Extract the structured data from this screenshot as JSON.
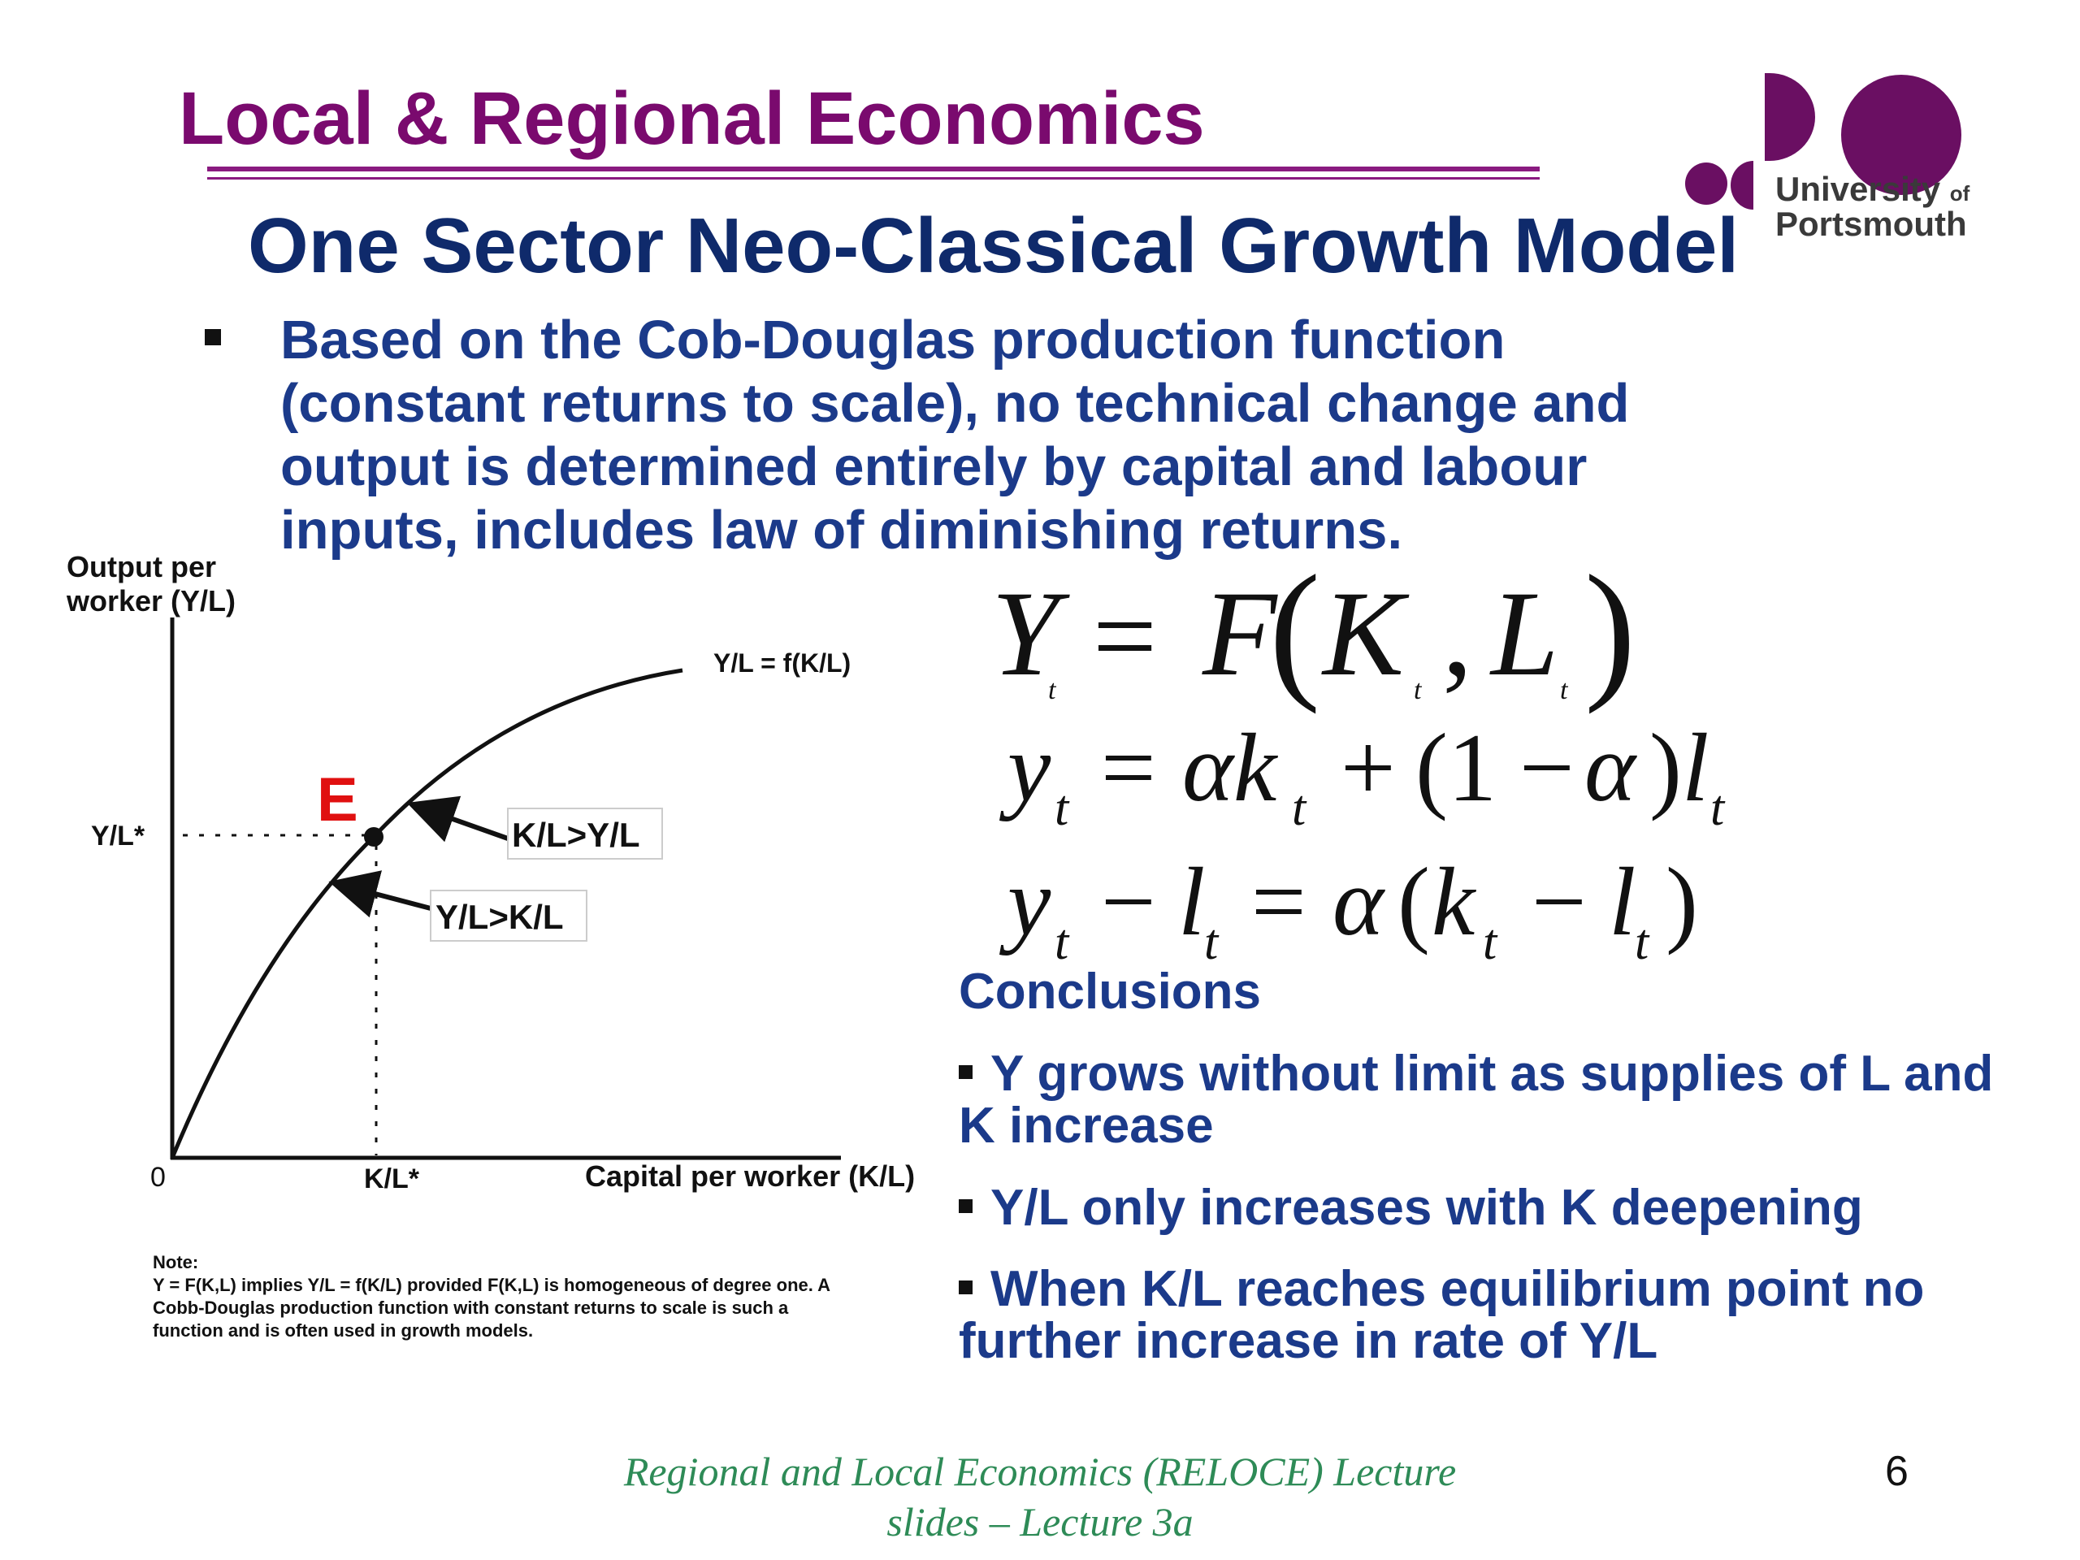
{
  "header": {
    "title": "Local & Regional Economics",
    "logo_line1": "University",
    "logo_of": "of",
    "logo_line2": "Portsmouth",
    "brand_color": "#7a0a6e"
  },
  "slide": {
    "title": "One Sector Neo-Classical Growth Model",
    "intro_lines": [
      "Based on the Cob-Douglas production function",
      "(constant returns to scale), no technical change and",
      "output is determined entirely by capital and labour",
      "inputs, includes law of diminishing returns."
    ]
  },
  "diagram": {
    "y_axis_label_line1": "Output per",
    "y_axis_label_line2": "worker (Y/L)",
    "x_axis_label": "Capital per worker (K/L)",
    "origin_label": "0",
    "curve_label": "Y/L = f(K/L)",
    "y_star_label": "Y/L*",
    "x_star_label": "K/L*",
    "point_label": "E",
    "annotation_upper": "K/L>Y/L",
    "annotation_lower": "Y/L>K/L",
    "point_color": "#e01010"
  },
  "note": {
    "heading": "Note:",
    "lines": [
      "Y = F(K,L) implies Y/L = f(K/L) provided F(K,L) is homogeneous of degree one. A",
      "Cobb-Douglas production function with constant returns to scale is such a",
      "function and is often used in growth models."
    ]
  },
  "conclusions": {
    "heading": "Conclusions",
    "items": [
      {
        "line1": "Y grows without limit as supplies of L and",
        "line2": "K increase"
      },
      {
        "line1": "Y/L only increases with K deepening",
        "line2": ""
      },
      {
        "line1": "When K/L reaches equilibrium point no",
        "line2": "further increase in rate of Y/L"
      }
    ]
  },
  "footer": {
    "line1": "Regional and Local Economics (RELOCE) Lecture",
    "line2": "slides – Lecture 3a",
    "page_number": "6"
  }
}
